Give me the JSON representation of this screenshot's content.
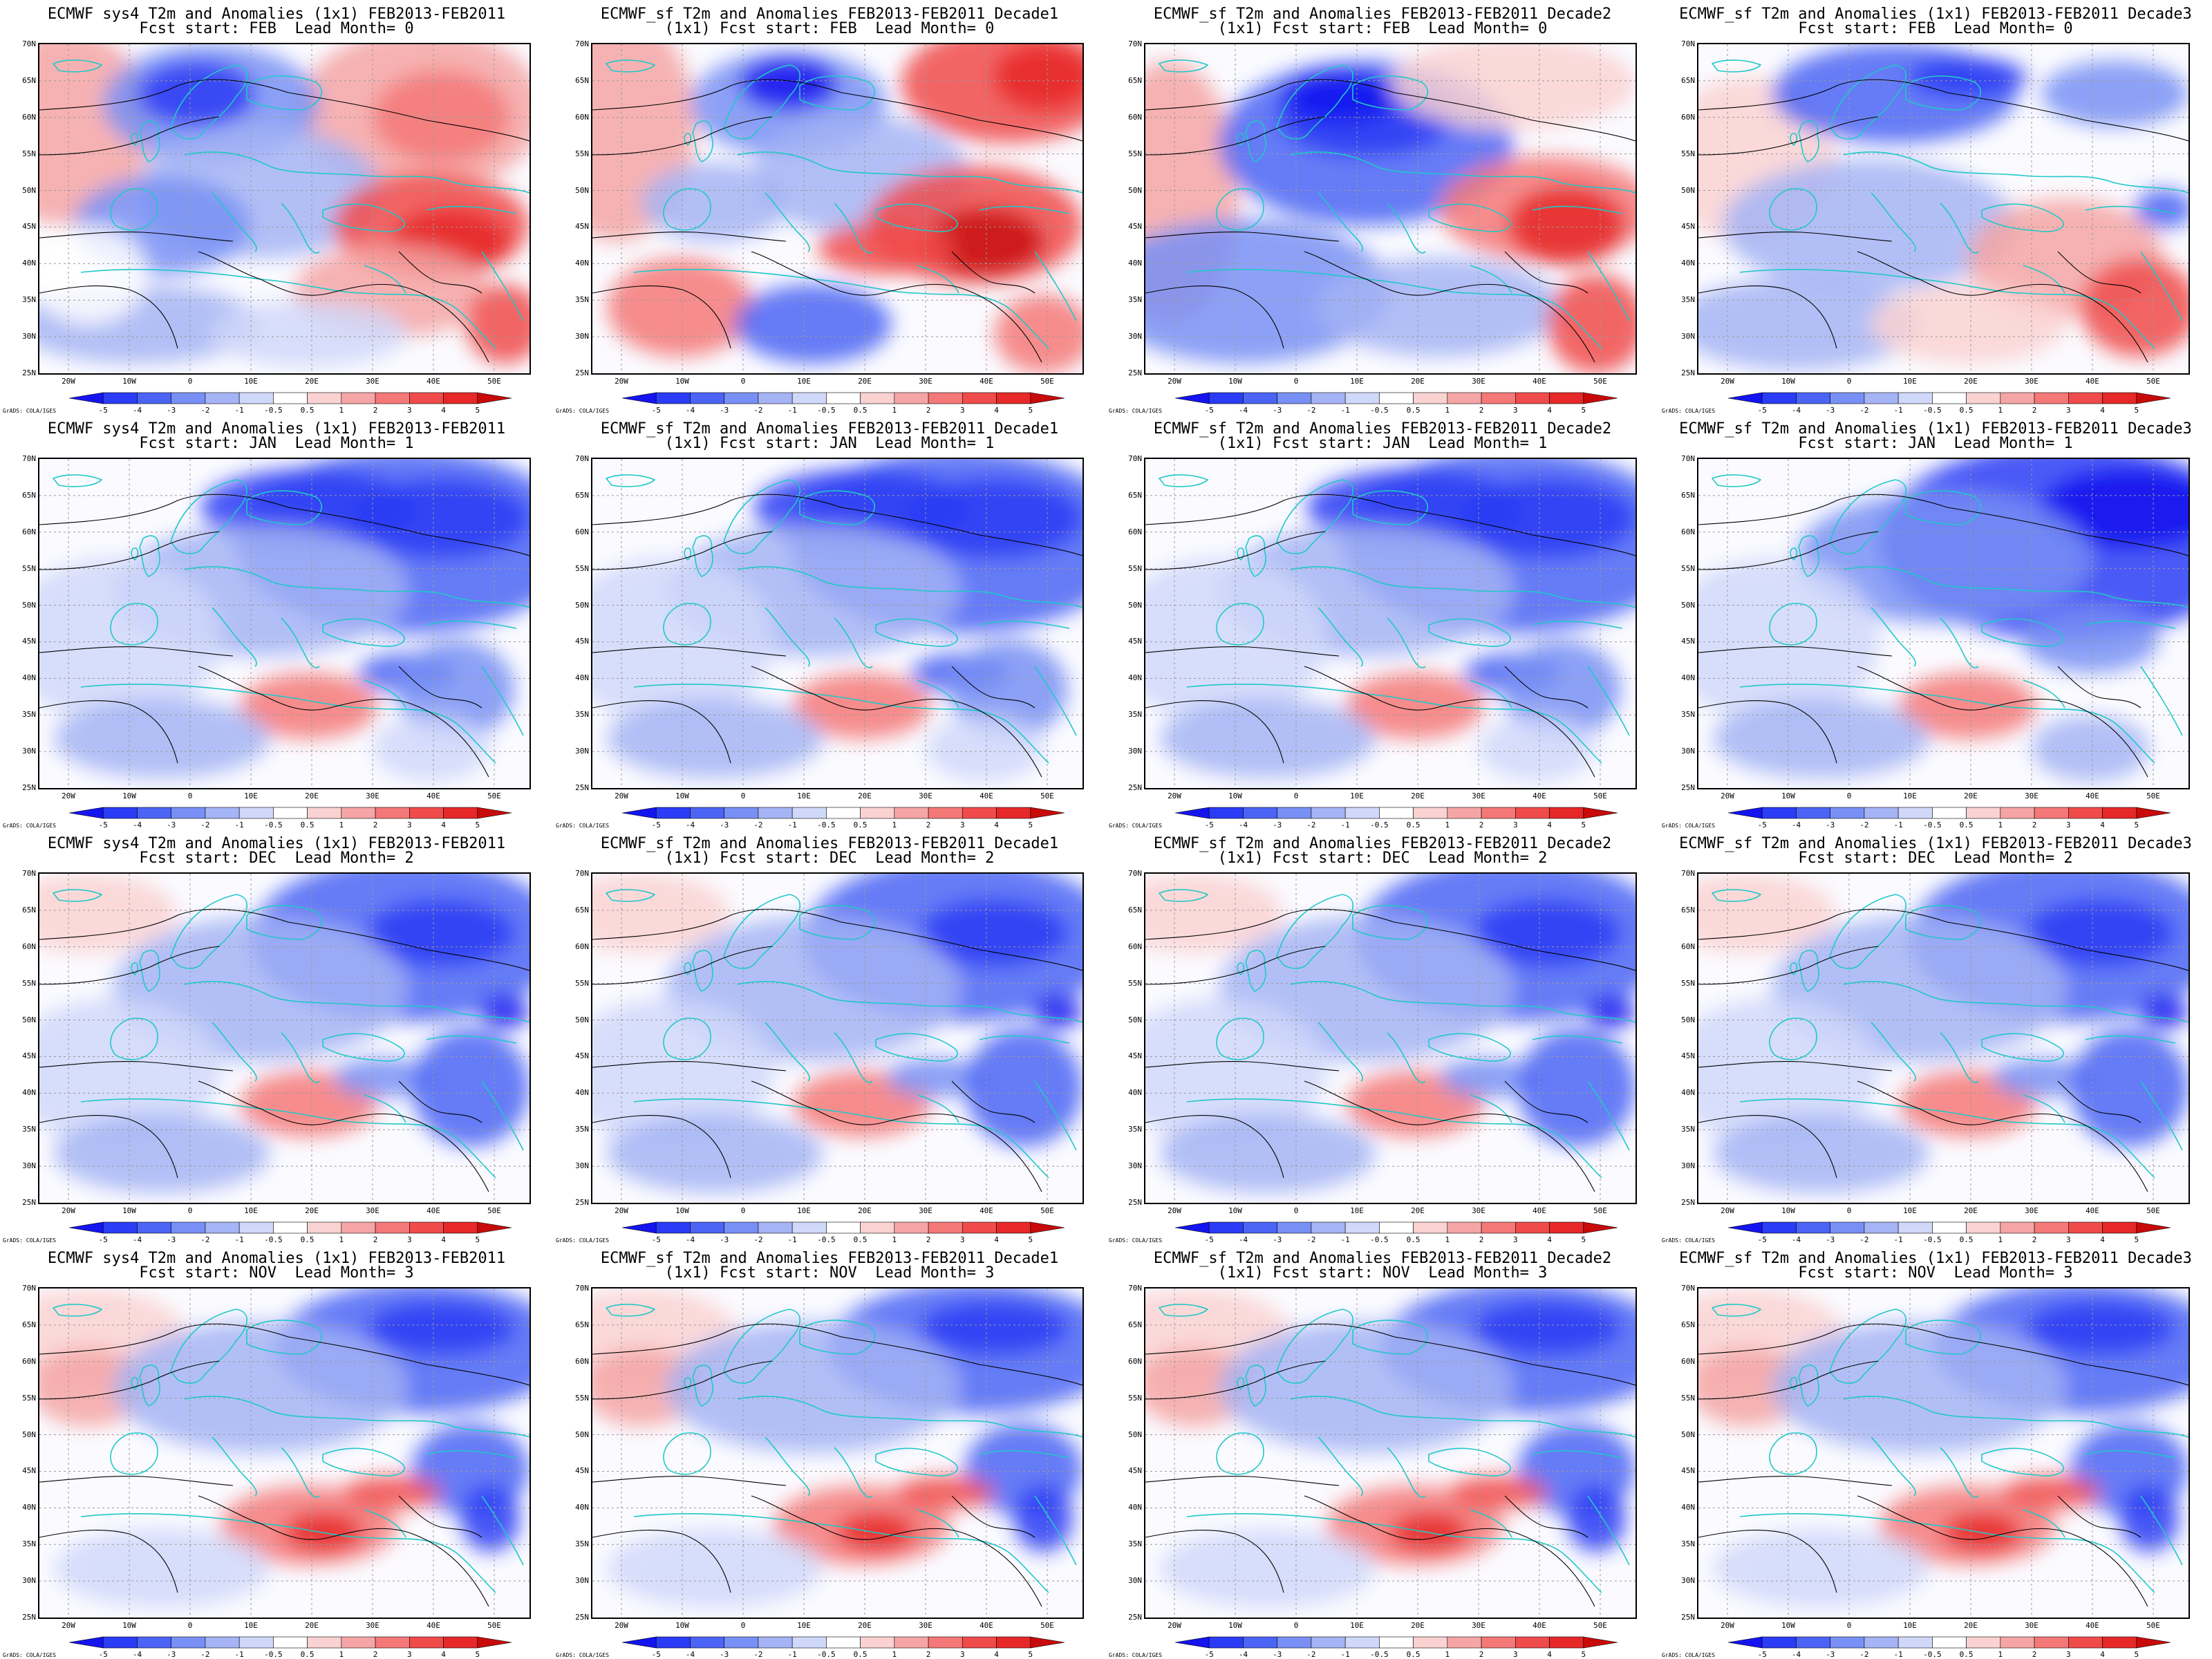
{
  "credit": "GrADS: COLA/IGES",
  "lat_labels": [
    "70N",
    "65N",
    "60N",
    "55N",
    "50N",
    "45N",
    "40N",
    "35N",
    "30N",
    "25N"
  ],
  "lon_labels": [
    "20W",
    "10W",
    "0",
    "10E",
    "20E",
    "30E",
    "40E",
    "50E"
  ],
  "colorbar": {
    "labels": [
      "-5",
      "-4",
      "-3",
      "-2",
      "-1",
      "-0.5",
      "0.5",
      "1",
      "2",
      "3",
      "4",
      "5"
    ],
    "colors": [
      "#1414f0",
      "#2a3cf5",
      "#4b64f5",
      "#7890f5",
      "#a5b4f5",
      "#d0d8fa",
      "#ffffff",
      "#fad2d2",
      "#f5a5a5",
      "#f57878",
      "#f04b4b",
      "#e62828",
      "#c80a0a"
    ]
  },
  "rows": [
    {
      "line2": "Fcst start: FEB  Lead Month= 0"
    },
    {
      "line2": "Fcst start: JAN  Lead Month= 1"
    },
    {
      "line2": "Fcst start: DEC  Lead Month= 2"
    },
    {
      "line2": "Fcst start: NOV  Lead Month= 3"
    }
  ],
  "columns": [
    {
      "line1": "ECMWF sys4 T2m and Anomalies (1x1) FEB2013-FEB2011",
      "prefix": ""
    },
    {
      "line1": "ECMWF_sf T2m and Anomalies FEB2013-FEB2011 Decade1",
      "prefix": "(1x1) "
    },
    {
      "line1": "ECMWF_sf T2m and Anomalies FEB2013-FEB2011 Decade2",
      "prefix": "(1x1) "
    },
    {
      "line1": "ECMWF_sf T2m and Anomalies (1x1) FEB2013-FEB2011 Decade3",
      "prefix": ""
    }
  ],
  "panels": [
    {
      "title_line1": "ECMWF sys4 T2m and Anomalies (1x1) FEB2013-FEB2011",
      "title_line2": "Fcst start: FEB  Lead Month= 0",
      "pattern": "feb-sys4"
    },
    {
      "title_line1": "ECMWF_sf T2m and Anomalies FEB2013-FEB2011 Decade1",
      "title_line2": "(1x1) Fcst start: FEB  Lead Month= 0",
      "pattern": "feb-d1"
    },
    {
      "title_line1": "ECMWF_sf T2m and Anomalies FEB2013-FEB2011 Decade2",
      "title_line2": "(1x1) Fcst start: FEB  Lead Month= 0",
      "pattern": "feb-d2"
    },
    {
      "title_line1": "ECMWF_sf T2m and Anomalies (1x1) FEB2013-FEB2011 Decade3",
      "title_line2": "Fcst start: FEB  Lead Month= 0",
      "pattern": "feb-d3"
    },
    {
      "title_line1": "ECMWF sys4 T2m and Anomalies (1x1) FEB2013-FEB2011",
      "title_line2": "Fcst start: JAN  Lead Month= 1",
      "pattern": "cold-ne"
    },
    {
      "title_line1": "ECMWF_sf T2m and Anomalies FEB2013-FEB2011 Decade1",
      "title_line2": "(1x1) Fcst start: JAN  Lead Month= 1",
      "pattern": "cold-ne"
    },
    {
      "title_line1": "ECMWF_sf T2m and Anomalies FEB2013-FEB2011 Decade2",
      "title_line2": "(1x1) Fcst start: JAN  Lead Month= 1",
      "pattern": "cold-ne"
    },
    {
      "title_line1": "ECMWF_sf T2m and Anomalies (1x1) FEB2013-FEB2011 Decade3",
      "title_line2": "Fcst start: JAN  Lead Month= 1",
      "pattern": "cold-ne-strong"
    },
    {
      "title_line1": "ECMWF sys4 T2m and Anomalies (1x1) FEB2013-FEB2011",
      "title_line2": "Fcst start: DEC  Lead Month= 2",
      "pattern": "cold-ne-warm-w"
    },
    {
      "title_line1": "ECMWF_sf T2m and Anomalies FEB2013-FEB2011 Decade1",
      "title_line2": "(1x1) Fcst start: DEC  Lead Month= 2",
      "pattern": "cold-ne-warm-w"
    },
    {
      "title_line1": "ECMWF_sf T2m and Anomalies FEB2013-FEB2011 Decade2",
      "title_line2": "(1x1) Fcst start: DEC  Lead Month= 2",
      "pattern": "cold-ne-warm-w"
    },
    {
      "title_line1": "ECMWF_sf T2m and Anomalies (1x1) FEB2013-FEB2011 Decade3",
      "title_line2": "Fcst start: DEC  Lead Month= 2",
      "pattern": "cold-ne-warm-w"
    },
    {
      "title_line1": "ECMWF sys4 T2m and Anomalies (1x1) FEB2013-FEB2011",
      "title_line2": "Fcst start: NOV  Lead Month= 3",
      "pattern": "nov"
    },
    {
      "title_line1": "ECMWF_sf T2m and Anomalies FEB2013-FEB2011 Decade1",
      "title_line2": "(1x1) Fcst start: NOV  Lead Month= 3",
      "pattern": "nov"
    },
    {
      "title_line1": "ECMWF_sf T2m and Anomalies FEB2013-FEB2011 Decade2",
      "title_line2": "(1x1) Fcst start: NOV  Lead Month= 3",
      "pattern": "nov"
    },
    {
      "title_line1": "ECMWF_sf T2m and Anomalies (1x1) FEB2013-FEB2011 Decade3",
      "title_line2": "Fcst start: NOV  Lead Month= 3",
      "pattern": "nov"
    }
  ],
  "map_colors": {
    "coast": "#20c8c8",
    "contour": "#000000"
  }
}
